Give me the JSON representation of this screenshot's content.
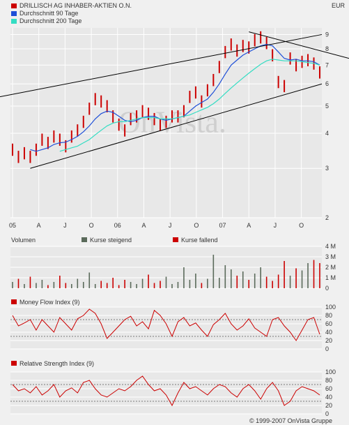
{
  "colors": {
    "background": "#f0f0f0",
    "plot": "#e8e8e8",
    "grid": "#ffffff",
    "price": "#cc0000",
    "ma90": "#1e4fd8",
    "ma200": "#33ddc3",
    "channel": "#000000",
    "vol_up": "#5a6a5a",
    "vol_down": "#cc0000"
  },
  "header": {
    "currency": "EUR"
  },
  "legend": [
    {
      "label": "DRILLISCH AG INHABER-AKTIEN O.N.",
      "color": "#cc0000"
    },
    {
      "label": "Durchschnitt 90 Tage",
      "color": "#1e4fd8"
    },
    {
      "label": "Durchschnitt 200 Tage",
      "color": "#33ddc3"
    }
  ],
  "watermark": "OnVista.",
  "copyright": "© 1999-2007 OnVista Gruppe",
  "chart_data": [
    {
      "type": "line",
      "scale": "log",
      "x_ticks": [
        "05",
        "A",
        "J",
        "O",
        "06",
        "A",
        "J",
        "O",
        "07",
        "A",
        "J",
        "O"
      ],
      "y_ticks": [
        2,
        3,
        4,
        5,
        6,
        7,
        8,
        9
      ],
      "ylim": [
        2,
        9.5
      ],
      "series": [
        {
          "name": "DRILLISCH AG INHABER-AKTIEN O.N.",
          "values": [
            3.5,
            3.3,
            3.4,
            3.3,
            3.5,
            3.8,
            3.7,
            3.9,
            3.8,
            3.6,
            3.9,
            4.1,
            4.4,
            4.9,
            5.3,
            5.2,
            5.0,
            4.6,
            4.3,
            4.1,
            4.5,
            4.6,
            4.8,
            4.7,
            4.5,
            4.3,
            4.4,
            4.6,
            4.6,
            4.8,
            5.4,
            5.6,
            5.2,
            5.7,
            6.2,
            6.9,
            7.8,
            8.3,
            7.9,
            8.2,
            8.1,
            8.6,
            8.8,
            8.4,
            7.6,
            6.1,
            5.9,
            7.4,
            7.0,
            7.2,
            7.3,
            7.1,
            6.6
          ]
        },
        {
          "name": "Durchschnitt 90 Tage",
          "values": [
            null,
            null,
            null,
            3.5,
            3.45,
            3.5,
            3.55,
            3.65,
            3.7,
            3.72,
            3.8,
            3.9,
            4.05,
            4.25,
            4.5,
            4.7,
            4.8,
            4.75,
            4.6,
            4.45,
            4.4,
            4.45,
            4.55,
            4.6,
            4.6,
            4.5,
            4.45,
            4.5,
            4.55,
            4.6,
            4.8,
            5.0,
            5.15,
            5.3,
            5.6,
            6.0,
            6.5,
            7.0,
            7.3,
            7.6,
            7.8,
            8.0,
            8.2,
            8.3,
            8.2,
            7.8,
            7.4,
            7.3,
            7.35,
            7.25,
            7.25,
            7.2,
            7.0
          ]
        },
        {
          "name": "Durchschnitt 200 Tage",
          "values": [
            null,
            null,
            null,
            null,
            null,
            null,
            null,
            null,
            3.45,
            3.5,
            3.55,
            3.6,
            3.7,
            3.8,
            3.95,
            4.1,
            4.25,
            4.35,
            4.4,
            4.4,
            4.45,
            4.5,
            4.55,
            4.55,
            4.55,
            4.5,
            4.5,
            4.5,
            4.55,
            4.6,
            4.65,
            4.75,
            4.85,
            4.95,
            5.1,
            5.3,
            5.55,
            5.8,
            6.05,
            6.3,
            6.55,
            6.8,
            7.05,
            7.25,
            7.35,
            7.3,
            7.25,
            7.25,
            7.25,
            7.2,
            7.15,
            7.1,
            7.0
          ]
        }
      ]
    },
    {
      "type": "bar",
      "title": "Volumen",
      "legend": [
        {
          "label": "Kurse steigend",
          "color": "#5a6a5a"
        },
        {
          "label": "Kurse fallend",
          "color": "#cc0000"
        }
      ],
      "y_ticks": [
        "0",
        "1 M",
        "2 M",
        "3 M",
        "4 M"
      ],
      "ylim": [
        0,
        4
      ],
      "values": [
        0.6,
        0.9,
        0.4,
        1.1,
        0.5,
        0.8,
        0.3,
        0.6,
        1.2,
        0.5,
        0.4,
        0.9,
        0.6,
        1.5,
        0.4,
        0.7,
        0.5,
        1.0,
        0.3,
        0.8,
        0.6,
        0.4,
        0.9,
        1.3,
        0.5,
        0.7,
        1.1,
        0.4,
        0.6,
        2.0,
        0.8,
        1.4,
        0.5,
        0.9,
        3.2,
        1.0,
        2.2,
        1.8,
        1.2,
        1.6,
        0.8,
        1.4,
        2.0,
        1.1,
        0.7,
        1.3,
        2.6,
        1.2,
        1.9,
        1.7,
        2.4,
        2.7,
        2.4
      ]
    },
    {
      "type": "line",
      "title": "Money Flow Index (9)",
      "y_ticks": [
        0,
        20,
        40,
        60,
        80,
        100
      ],
      "ylim": [
        0,
        100
      ],
      "reference_lines": [
        30,
        70
      ],
      "values": [
        80,
        55,
        62,
        70,
        45,
        70,
        55,
        40,
        75,
        60,
        45,
        72,
        80,
        95,
        85,
        60,
        25,
        40,
        55,
        70,
        78,
        55,
        65,
        48,
        92,
        80,
        60,
        30,
        65,
        75,
        55,
        62,
        45,
        30,
        58,
        70,
        85,
        60,
        45,
        55,
        72,
        50,
        40,
        30,
        70,
        75,
        55,
        40,
        20,
        45,
        70,
        75,
        35
      ]
    },
    {
      "type": "line",
      "title": "Relative Strength Index (9)",
      "y_ticks": [
        0,
        20,
        40,
        60,
        80,
        100
      ],
      "ylim": [
        0,
        100
      ],
      "reference_lines": [
        30,
        70
      ],
      "values": [
        70,
        55,
        60,
        50,
        65,
        45,
        55,
        70,
        40,
        55,
        62,
        50,
        75,
        80,
        60,
        45,
        40,
        50,
        60,
        55,
        65,
        80,
        90,
        70,
        55,
        60,
        45,
        20,
        50,
        75,
        60,
        65,
        55,
        45,
        60,
        70,
        65,
        50,
        40,
        60,
        70,
        55,
        35,
        60,
        75,
        55,
        20,
        30,
        55,
        65,
        60,
        55,
        45
      ]
    }
  ]
}
